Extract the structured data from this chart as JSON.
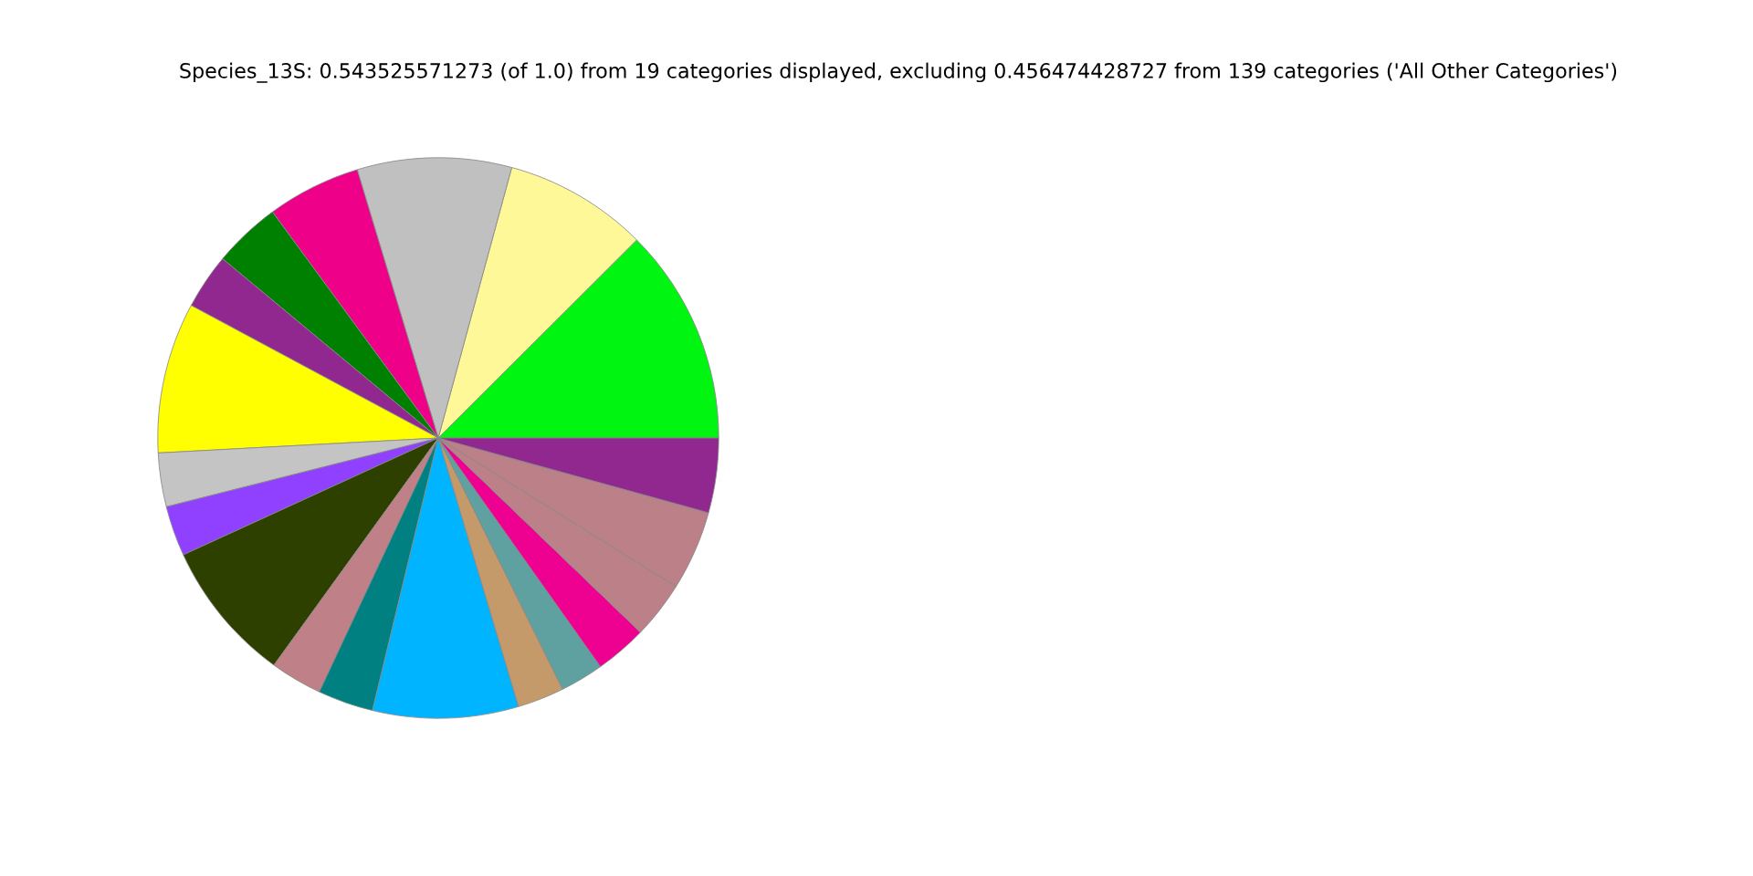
{
  "chart_data": {
    "type": "pie",
    "title": "Species_13S: 0.543525571273 (of 1.0) from 19 categories displayed, excluding 0.456474428727 from 139 categories ('All Other Categories')",
    "categories": [
      null,
      null,
      null,
      null,
      null,
      null,
      null,
      null,
      null,
      null,
      null,
      null,
      null,
      null,
      null,
      null,
      null,
      null,
      null
    ],
    "values": [
      12.5,
      8.3,
      8.9,
      5.4,
      3.9,
      3.2,
      8.7,
      3.1,
      2.9,
      8.2,
      3.0,
      3.2,
      8.4,
      2.7,
      2.5,
      3.0,
      3.3,
      4.6,
      4.3
    ],
    "colors": [
      "#00f510",
      "#fff899",
      "#c0c0c0",
      "#ee0088",
      "#008000",
      "#902890",
      "#ffff00",
      "#c4c4c4",
      "#9040ff",
      "#2d4000",
      "#c08088",
      "#008080",
      "#00b4ff",
      "#c49a6a",
      "#5fa0a0",
      "#ee0090",
      "#bb8088",
      "#bb8088",
      "#902890"
    ]
  }
}
